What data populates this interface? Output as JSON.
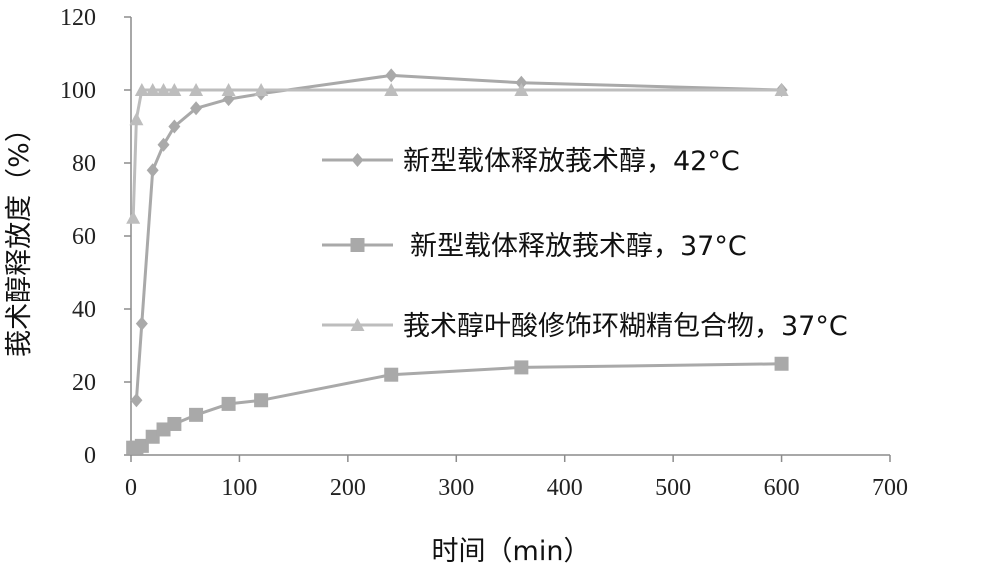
{
  "chart_data": {
    "type": "line",
    "xlabel": "时间（min）",
    "ylabel": "莪术醇释放度（%）",
    "xlim": [
      0,
      700
    ],
    "ylim": [
      0,
      120
    ],
    "xticks": [
      "0",
      "100",
      "200",
      "300",
      "400",
      "500",
      "600",
      "700"
    ],
    "yticks": [
      "0",
      "20",
      "40",
      "60",
      "80",
      "100",
      "120"
    ],
    "grid": false,
    "legend_position": "right-center",
    "series": [
      {
        "name": "新型载体释放莪术醇，42°C",
        "marker": "diamond",
        "color": "#a9a9a9",
        "x": [
          5,
          10,
          20,
          30,
          40,
          60,
          90,
          120,
          240,
          360,
          600
        ],
        "y": [
          15,
          36,
          78,
          85,
          90,
          95,
          97.5,
          99,
          104,
          102,
          100
        ]
      },
      {
        "name": "新型载体释放莪术醇，37°C",
        "marker": "square",
        "color": "#a9a9a9",
        "x": [
          2,
          5,
          10,
          20,
          30,
          40,
          60,
          90,
          120,
          240,
          360,
          600
        ],
        "y": [
          2,
          2,
          2.5,
          5,
          7,
          8.5,
          11,
          14,
          15,
          22,
          24,
          25
        ]
      },
      {
        "name": "莪术醇叶酸修饰环糊精包合物，37°C",
        "marker": "triangle",
        "color": "#bdbdbd",
        "x": [
          2,
          5,
          10,
          20,
          30,
          40,
          60,
          90,
          120,
          240,
          360,
          600
        ],
        "y": [
          65,
          92,
          100,
          100,
          100,
          100,
          100,
          100,
          100,
          100,
          100,
          100
        ]
      }
    ]
  }
}
